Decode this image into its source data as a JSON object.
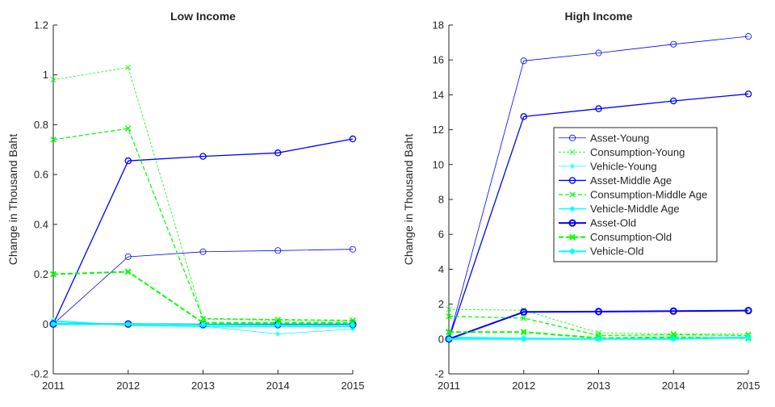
{
  "colors": {
    "asset": "#0000ff",
    "consumption": "#00ff00",
    "vehicle": "#00ffff",
    "axis": "#262626"
  },
  "chart_data": [
    {
      "type": "line",
      "title": "Low Income",
      "xlabel": "",
      "ylabel": "Change in Thousand Baht",
      "x": [
        2011,
        2012,
        2013,
        2014,
        2015
      ],
      "xticks": [
        "2011",
        "2012",
        "2013",
        "2014",
        "2015"
      ],
      "ylim": [
        -0.2,
        1.2
      ],
      "yticks": [
        "-0.2",
        "0",
        "0.2",
        "0.4",
        "0.6",
        "0.8",
        "1",
        "1.2"
      ],
      "grid": false,
      "legend": "none",
      "series": [
        {
          "name": "Asset-Young",
          "group": "asset",
          "weight": "thin",
          "marker": "circle",
          "values": [
            0.0,
            0.27,
            0.29,
            0.295,
            0.3
          ]
        },
        {
          "name": "Consumption-Young",
          "group": "consumption",
          "weight": "thin",
          "marker": "x",
          "values": [
            0.98,
            1.03,
            0.02,
            0.015,
            0.012
          ]
        },
        {
          "name": "Vehicle-Young",
          "group": "vehicle",
          "weight": "thin",
          "marker": "star",
          "values": [
            0.015,
            -0.005,
            -0.008,
            -0.04,
            -0.02
          ]
        },
        {
          "name": "Asset-Middle Age",
          "group": "asset",
          "weight": "medium",
          "marker": "circle",
          "values": [
            0.0,
            0.655,
            0.673,
            0.687,
            0.743
          ]
        },
        {
          "name": "Consumption-Middle Age",
          "group": "consumption",
          "weight": "medium",
          "marker": "x",
          "values": [
            0.74,
            0.785,
            0.022,
            0.018,
            0.015
          ]
        },
        {
          "name": "Vehicle-Middle Age",
          "group": "vehicle",
          "weight": "medium",
          "marker": "star",
          "values": [
            0.01,
            -0.005,
            -0.01,
            -0.01,
            -0.01
          ]
        },
        {
          "name": "Asset-Old",
          "group": "asset",
          "weight": "thick",
          "marker": "circle",
          "values": [
            0.0,
            0.0,
            -0.002,
            -0.002,
            -0.002
          ]
        },
        {
          "name": "Consumption-Old",
          "group": "consumption",
          "weight": "thick",
          "marker": "x",
          "values": [
            0.2,
            0.21,
            0.005,
            0.005,
            0.005
          ]
        },
        {
          "name": "Vehicle-Old",
          "group": "vehicle",
          "weight": "thick",
          "marker": "star",
          "values": [
            0.0,
            0.0,
            -0.003,
            -0.004,
            -0.004
          ]
        }
      ]
    },
    {
      "type": "line",
      "title": "High Income",
      "xlabel": "",
      "ylabel": "Change in Thousand Baht",
      "x": [
        2011,
        2012,
        2013,
        2014,
        2015
      ],
      "xticks": [
        "2011",
        "2012",
        "2013",
        "2014",
        "2015"
      ],
      "ylim": [
        -2,
        18
      ],
      "yticks": [
        "-2",
        "0",
        "2",
        "4",
        "6",
        "8",
        "10",
        "12",
        "14",
        "16",
        "18"
      ],
      "grid": false,
      "legend": "center",
      "series": [
        {
          "name": "Asset-Young",
          "group": "asset",
          "weight": "thin",
          "marker": "circle",
          "values": [
            0.0,
            15.95,
            16.4,
            16.9,
            17.35
          ]
        },
        {
          "name": "Consumption-Young",
          "group": "consumption",
          "weight": "thin",
          "marker": "x",
          "values": [
            1.7,
            1.65,
            0.35,
            0.3,
            0.28
          ]
        },
        {
          "name": "Vehicle-Young",
          "group": "vehicle",
          "weight": "thin",
          "marker": "star",
          "values": [
            0.05,
            0.05,
            0.02,
            0.03,
            0.1
          ]
        },
        {
          "name": "Asset-Middle Age",
          "group": "asset",
          "weight": "medium",
          "marker": "circle",
          "values": [
            0.0,
            12.75,
            13.2,
            13.65,
            14.05
          ]
        },
        {
          "name": "Consumption-Middle Age",
          "group": "consumption",
          "weight": "medium",
          "marker": "x",
          "values": [
            1.3,
            1.2,
            0.2,
            0.25,
            0.2
          ]
        },
        {
          "name": "Vehicle-Middle Age",
          "group": "vehicle",
          "weight": "medium",
          "marker": "star",
          "values": [
            0.1,
            0.05,
            0.0,
            0.02,
            0.05
          ]
        },
        {
          "name": "Asset-Old",
          "group": "asset",
          "weight": "thick",
          "marker": "circle",
          "values": [
            0.0,
            1.55,
            1.57,
            1.6,
            1.63
          ]
        },
        {
          "name": "Consumption-Old",
          "group": "consumption",
          "weight": "thick",
          "marker": "x",
          "values": [
            0.4,
            0.4,
            0.05,
            0.1,
            0.05
          ]
        },
        {
          "name": "Vehicle-Old",
          "group": "vehicle",
          "weight": "thick",
          "marker": "star",
          "values": [
            0.0,
            0.0,
            0.0,
            0.0,
            0.1
          ]
        }
      ]
    }
  ]
}
